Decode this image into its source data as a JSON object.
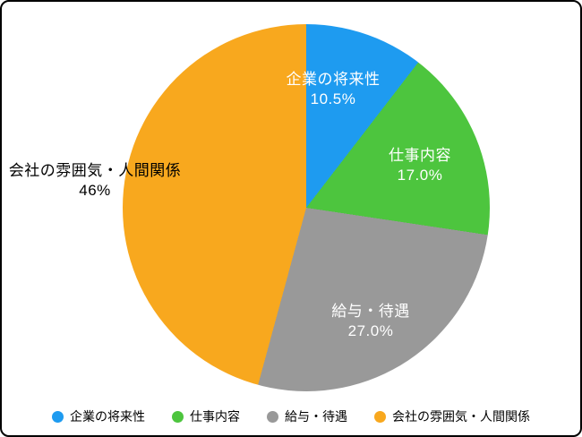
{
  "chart_data": {
    "type": "pie",
    "title": "",
    "start_angle_deg": 0,
    "direction": "clockwise",
    "legend_position": "bottom",
    "slices": [
      {
        "name": "企業の将来性",
        "value": 10.5,
        "pct_label": "10.5%",
        "color": "#1E9BF0",
        "label_placement": "inside",
        "label_color": "#ffffff"
      },
      {
        "name": "仕事内容",
        "value": 17.0,
        "pct_label": "17.0%",
        "color": "#4DC53E",
        "label_placement": "inside",
        "label_color": "#ffffff"
      },
      {
        "name": "給与・待遇",
        "value": 27.0,
        "pct_label": "27.0%",
        "color": "#999999",
        "label_placement": "inside",
        "label_color": "#ffffff"
      },
      {
        "name": "会社の雰囲気・人間関係",
        "value": 46,
        "pct_label": "46%",
        "color": "#F8A81E",
        "label_placement": "outside",
        "label_color": "#000000"
      }
    ]
  },
  "legend": {
    "items": [
      {
        "label": "企業の将来性",
        "color": "#1E9BF0"
      },
      {
        "label": "仕事内容",
        "color": "#4DC53E"
      },
      {
        "label": "給与・待遇",
        "color": "#999999"
      },
      {
        "label": "会社の雰囲気・人間関係",
        "color": "#F8A81E"
      }
    ]
  }
}
